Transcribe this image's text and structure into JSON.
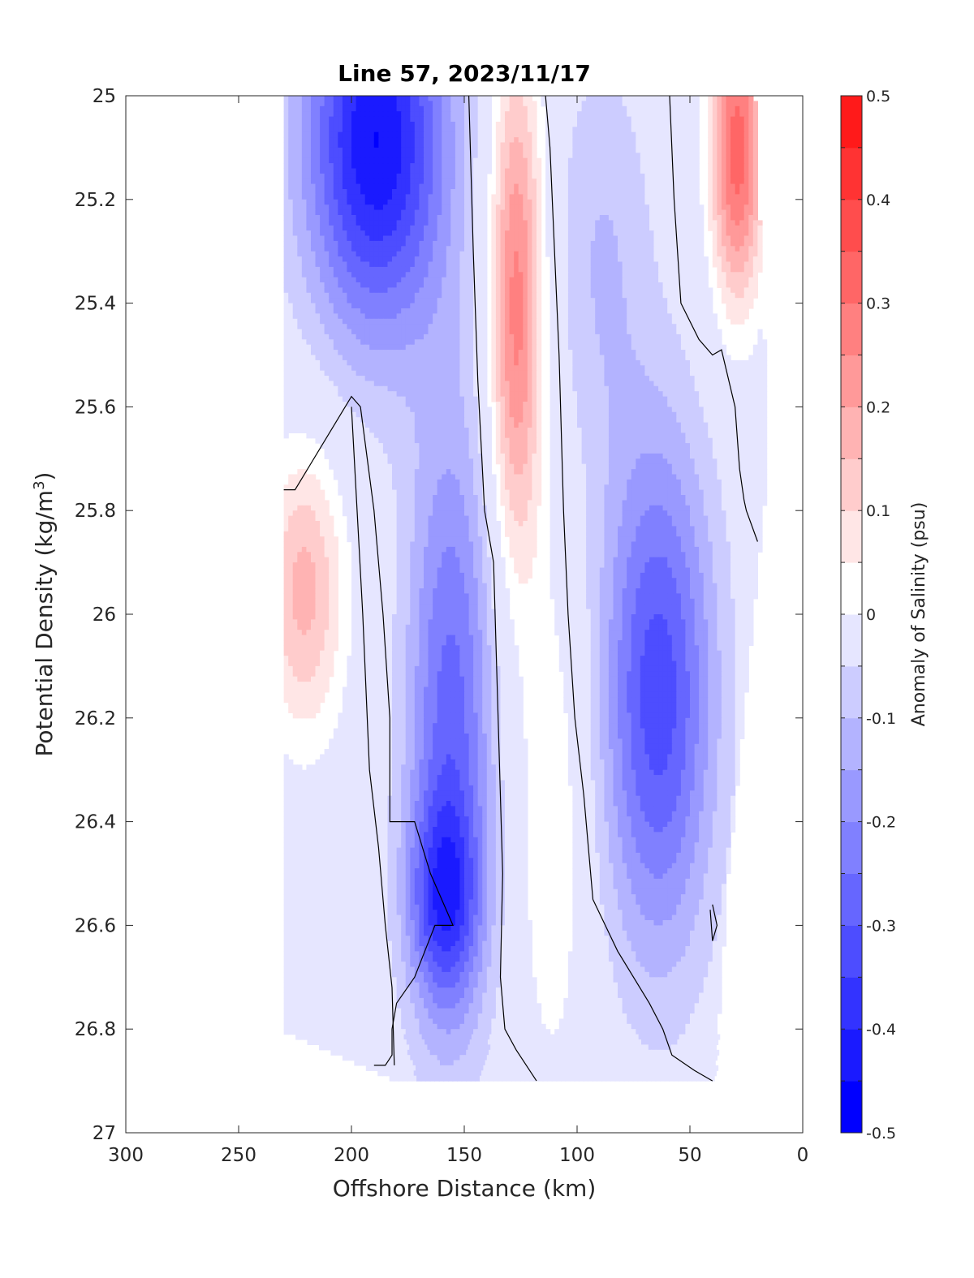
{
  "chart_data": {
    "type": "contour",
    "title": "Line 57, 2023/11/17",
    "xlabel": "Offshore Distance (km)",
    "ylabel_main": "Potential Density (kg/m",
    "ylabel_sup": "3",
    "ylabel_close": ")",
    "xlim": [
      300,
      0
    ],
    "ylim": [
      27,
      25
    ],
    "x_reversed": true,
    "y_reversed": true,
    "x_ticks": [
      300,
      250,
      200,
      150,
      100,
      50,
      0
    ],
    "x_tick_labels": [
      "300",
      "250",
      "200",
      "150",
      "100",
      "50",
      "0"
    ],
    "y_ticks": [
      25,
      25.2,
      25.4,
      25.6,
      25.8,
      26,
      26.2,
      26.4,
      26.6,
      26.8,
      27
    ],
    "y_tick_labels": [
      "25",
      "25.2",
      "25.4",
      "25.6",
      "25.8",
      "26",
      "26.2",
      "26.4",
      "26.6",
      "26.8",
      "27"
    ],
    "grid": false,
    "colorbar": {
      "label": "Anomaly of Salinity (psu)",
      "range": [
        -0.5,
        0.5
      ],
      "ticks": [
        -0.5,
        -0.4,
        -0.3,
        -0.2,
        -0.1,
        0,
        0.1,
        0.2,
        0.3,
        0.4,
        0.5
      ],
      "tick_labels": [
        "-0.5",
        "-0.4",
        "-0.3",
        "-0.2",
        "-0.1",
        "0",
        "0.1",
        "0.2",
        "0.3",
        "0.4",
        "0.5"
      ],
      "levels": [
        -0.5,
        -0.45,
        -0.4,
        -0.35,
        -0.3,
        -0.25,
        -0.2,
        -0.15,
        -0.1,
        -0.05,
        0.05,
        0.1,
        0.15,
        0.2,
        0.25,
        0.3,
        0.35,
        0.4,
        0.45,
        0.5
      ],
      "colors": [
        "#0000ff",
        "#1a1aff",
        "#3333ff",
        "#4d4dff",
        "#6666ff",
        "#8080ff",
        "#9999ff",
        "#b3b3ff",
        "#ccccff",
        "#e6e6ff",
        "#ffffff",
        "#ffe6e6",
        "#ffcccc",
        "#ffb3b3",
        "#ff9999",
        "#ff8080",
        "#ff6666",
        "#ff4d4d",
        "#ff3333",
        "#ff1a1a"
      ]
    },
    "anomaly_features": [
      {
        "name": "offshore-upper-fresh-core",
        "x_center": 190,
        "sigma_center": 25.08,
        "x_halfwidth": 32,
        "sigma_halfwidth": 0.38,
        "peak": -0.45
      },
      {
        "name": "offshore-mid-fresh-band",
        "x_center": 157,
        "sigma_center": 26.2,
        "x_halfwidth": 20,
        "sigma_halfwidth": 0.6,
        "peak": -0.27
      },
      {
        "name": "offshore-deep-fresh-core",
        "x_center": 160,
        "sigma_center": 26.55,
        "x_halfwidth": 16,
        "sigma_halfwidth": 0.2,
        "peak": -0.25
      },
      {
        "name": "offshore-salty-lobe",
        "x_center": 222,
        "sigma_center": 25.95,
        "x_halfwidth": 18,
        "sigma_halfwidth": 0.28,
        "peak": 0.22
      },
      {
        "name": "central-salty-filament",
        "x_center": 128,
        "sigma_center": 25.4,
        "x_halfwidth": 12,
        "sigma_halfwidth": 0.5,
        "peak": 0.33
      },
      {
        "name": "central-salty-tail",
        "x_center": 112,
        "sigma_center": 26.4,
        "x_halfwidth": 16,
        "sigma_halfwidth": 0.5,
        "peak": 0.1
      },
      {
        "name": "inshore-fresh-core",
        "x_center": 65,
        "sigma_center": 26.15,
        "x_halfwidth": 25,
        "sigma_halfwidth": 0.5,
        "peak": -0.33
      },
      {
        "name": "inshore-upper-fresh-band",
        "x_center": 90,
        "sigma_center": 25.3,
        "x_halfwidth": 22,
        "sigma_halfwidth": 0.4,
        "peak": -0.1
      },
      {
        "name": "nearshore-salty-patch",
        "x_center": 30,
        "sigma_center": 25.1,
        "x_halfwidth": 12,
        "sigma_halfwidth": 0.3,
        "peak": 0.38
      }
    ],
    "zero_contours": [
      {
        "name": "zero-contour-offshore",
        "x": [
          230,
          225,
          200,
          196,
          190,
          186,
          183,
          183,
          180,
          180,
          172,
          165,
          155,
          155,
          163,
          172,
          180,
          182,
          182,
          185,
          190
        ],
        "y": [
          25.76,
          25.76,
          25.58,
          25.6,
          25.8,
          26.0,
          26.2,
          26.4,
          26.4,
          26.4,
          26.4,
          26.5,
          26.6,
          26.6,
          26.6,
          26.7,
          26.75,
          26.8,
          26.85,
          26.87,
          26.87
        ]
      },
      {
        "name": "zero-contour-line-a",
        "x": [
          200,
          195,
          192,
          188,
          185,
          182,
          181
        ],
        "y": [
          25.6,
          26.0,
          26.3,
          26.45,
          26.6,
          26.72,
          26.87
        ]
      },
      {
        "name": "zero-contour-line-b",
        "x": [
          148,
          146,
          144,
          141,
          137,
          135,
          133,
          134,
          132,
          127,
          118
        ],
        "y": [
          25.0,
          25.3,
          25.55,
          25.8,
          25.9,
          26.2,
          26.5,
          26.7,
          26.8,
          26.84,
          26.9
        ]
      },
      {
        "name": "zero-contour-line-c",
        "x": [
          114,
          112,
          108,
          106,
          104,
          101,
          97,
          93,
          82,
          68,
          62,
          58,
          48,
          40
        ],
        "y": [
          25.0,
          25.1,
          25.5,
          25.8,
          26.0,
          26.2,
          26.35,
          26.55,
          26.65,
          26.75,
          26.8,
          26.85,
          26.88,
          26.9
        ]
      },
      {
        "name": "zero-contour-line-d",
        "x": [
          59,
          57,
          54,
          46,
          40,
          36,
          30,
          28,
          26,
          25,
          20
        ],
        "y": [
          25.0,
          25.2,
          25.4,
          25.47,
          25.5,
          25.49,
          25.6,
          25.72,
          25.78,
          25.8,
          25.86
        ]
      },
      {
        "name": "zero-contour-small-loop",
        "x": [
          40,
          38,
          40,
          41
        ],
        "y": [
          26.56,
          26.6,
          26.63,
          26.57
        ]
      }
    ],
    "data_mask": {
      "x_min_by_sigma": [
        {
          "sigma": 25.0,
          "x": 230
        },
        {
          "sigma": 26.8,
          "x": 230
        },
        {
          "sigma": 26.9,
          "x": 178
        }
      ],
      "x_max_by_sigma": [
        {
          "sigma": 25.0,
          "x": 22
        },
        {
          "sigma": 25.7,
          "x": 16
        },
        {
          "sigma": 26.5,
          "x": 34
        },
        {
          "sigma": 26.9,
          "x": 40
        }
      ],
      "sigma_max": 26.9
    }
  }
}
